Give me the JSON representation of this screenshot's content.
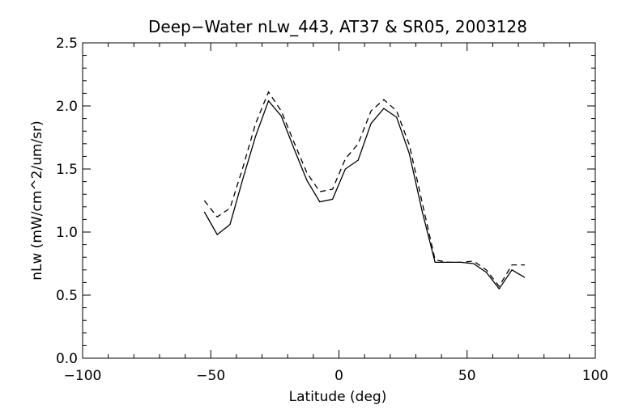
{
  "chart_data": {
    "type": "line",
    "title": "Deep−Water nLw_443, AT37 & SR05, 2003128",
    "xlabel": "Latitude (deg)",
    "ylabel": "nLw (mW/cm^2/um/sr)",
    "xlim": [
      -100,
      100
    ],
    "ylim": [
      0.0,
      2.5
    ],
    "xticks": [
      "−100",
      "−50",
      "0",
      "50",
      "100"
    ],
    "xtick_values": [
      -100,
      -50,
      0,
      50,
      100
    ],
    "yticks": [
      "0.0",
      "0.5",
      "1.0",
      "1.5",
      "2.0",
      "2.5"
    ],
    "ytick_values": [
      0.0,
      0.5,
      1.0,
      1.5,
      2.0,
      2.5
    ],
    "grid": false,
    "series": [
      {
        "style": "solid",
        "color": "#000000",
        "x": [
          -52.5,
          -47.5,
          -42.5,
          -37.5,
          -32.5,
          -27.5,
          -22.5,
          -17.5,
          -12.5,
          -7.5,
          -2.5,
          2.5,
          7.5,
          12.5,
          17.5,
          22.5,
          27.5,
          32.5,
          37.5,
          42.5,
          47.5,
          52.5,
          57.5,
          62.5,
          67.5,
          72.5
        ],
        "y": [
          1.16,
          0.98,
          1.06,
          1.42,
          1.76,
          2.04,
          1.92,
          1.66,
          1.41,
          1.24,
          1.26,
          1.5,
          1.57,
          1.86,
          1.98,
          1.91,
          1.62,
          1.16,
          0.76,
          0.76,
          0.76,
          0.75,
          0.68,
          0.55,
          0.7,
          0.64
        ]
      },
      {
        "style": "dashed",
        "color": "#000000",
        "x": [
          -52.5,
          -47.5,
          -42.5,
          -37.5,
          -32.5,
          -27.5,
          -22.5,
          -17.5,
          -12.5,
          -7.5,
          -2.5,
          2.5,
          7.5,
          12.5,
          17.5,
          22.5,
          27.5,
          32.5,
          37.5,
          42.5,
          47.5,
          52.5,
          57.5,
          62.5,
          67.5,
          72.5
        ],
        "y": [
          1.25,
          1.12,
          1.19,
          1.51,
          1.86,
          2.11,
          1.96,
          1.71,
          1.47,
          1.32,
          1.34,
          1.58,
          1.7,
          1.96,
          2.05,
          1.96,
          1.69,
          1.23,
          0.78,
          0.76,
          0.76,
          0.77,
          0.7,
          0.57,
          0.74,
          0.74
        ]
      }
    ]
  }
}
